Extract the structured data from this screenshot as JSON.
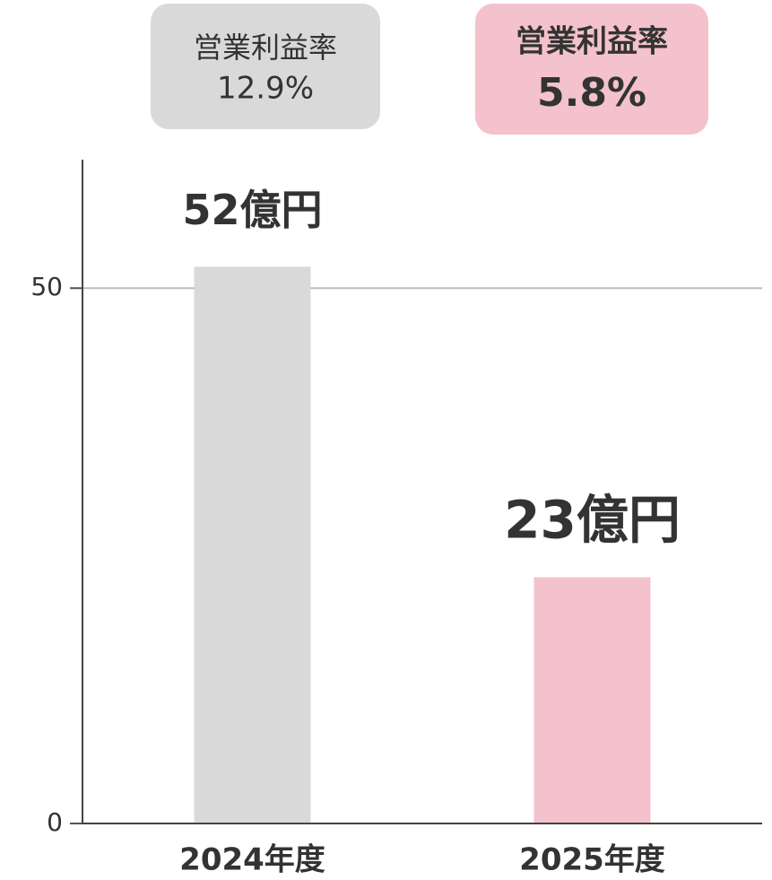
{
  "chart_data": {
    "type": "bar",
    "categories": [
      "2024年度",
      "2025年度"
    ],
    "values": [
      52,
      23
    ],
    "value_labels": [
      "52億円",
      "23億円"
    ],
    "colors": [
      "#d9d9d9",
      "#f4c2cc"
    ],
    "ylim": [
      0,
      62
    ],
    "yticks": [
      0,
      50
    ],
    "grid": true,
    "annotations": [
      {
        "title": "営業利益率",
        "value": "12.9%"
      },
      {
        "title": "営業利益率",
        "value": "5.8%"
      }
    ]
  }
}
